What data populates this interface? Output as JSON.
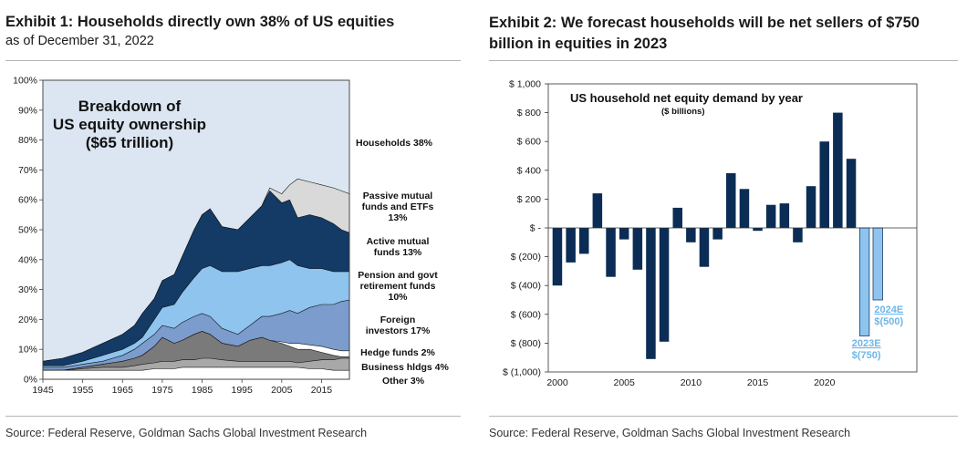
{
  "exhibit1": {
    "title": "Exhibit 1: Households directly own 38% of US equities",
    "subtitle": "as of December 31, 2022",
    "source": "Source: Federal Reserve, Goldman Sachs Global Investment Research",
    "inner_title_lines": [
      "Breakdown of",
      "US equity ownership",
      "($65 trillion)"
    ],
    "chart_data": {
      "type": "area",
      "title": "Breakdown of US equity ownership ($65 trillion)",
      "xlim": [
        1945,
        2022
      ],
      "ylim": [
        0,
        100
      ],
      "x_ticks": [
        1945,
        1955,
        1965,
        1975,
        1985,
        1995,
        2005,
        2015
      ],
      "y_ticks": [
        "0%",
        "10%",
        "20%",
        "30%",
        "40%",
        "50%",
        "60%",
        "70%",
        "80%",
        "90%",
        "100%"
      ],
      "x": [
        1945,
        1950,
        1955,
        1960,
        1965,
        1968,
        1970,
        1973,
        1975,
        1978,
        1980,
        1983,
        1985,
        1987,
        1990,
        1994,
        1997,
        2000,
        2002,
        2005,
        2007,
        2009,
        2012,
        2015,
        2018,
        2020,
        2022
      ],
      "series": [
        {
          "name": "Other 3%",
          "color": "#ffffff",
          "cumulative_top": [
            3,
            3,
            3,
            3,
            3,
            3,
            3,
            3.5,
            3.5,
            3.5,
            4,
            4,
            4,
            4,
            4,
            4,
            4,
            4,
            4,
            4,
            4,
            4,
            3.5,
            3.5,
            3,
            3,
            3
          ]
        },
        {
          "name": "Business hldgs 4%",
          "color": "#a8a8a8",
          "cumulative_top": [
            3,
            3,
            3.5,
            4,
            4,
            4.5,
            5,
            5.5,
            6,
            6,
            6.5,
            6.5,
            7,
            7,
            6.5,
            6,
            6,
            6,
            6,
            6,
            6,
            5.5,
            6,
            6.5,
            6.5,
            7,
            7
          ]
        },
        {
          "name": "Hedge funds 2%",
          "color": "#7a7a7a",
          "cumulative_top": [
            3,
            3,
            4,
            5,
            6,
            7,
            8,
            11,
            14,
            12,
            13,
            15,
            16,
            15,
            12,
            11,
            13,
            14,
            13,
            12,
            11,
            10,
            10,
            9,
            8,
            7.5,
            7.5
          ]
        },
        {
          "name": "Foreign investors 17%",
          "color": "#ffffff",
          "cumulative_top": [
            3,
            3,
            4,
            5,
            6,
            7,
            8,
            11,
            14,
            12,
            13,
            15,
            16,
            15,
            12,
            11,
            13,
            14,
            13,
            12.5,
            12,
            12,
            11.5,
            11,
            10,
            9.5,
            9.5
          ]
        },
        {
          "name": "Pension and govt retirement funds 10%",
          "color": "#7b9ccc",
          "cumulative_top": [
            4,
            4,
            5,
            6,
            8,
            10,
            12,
            15,
            18,
            17,
            19,
            21,
            22,
            21,
            17,
            15,
            18,
            21,
            21,
            22,
            23,
            22,
            24,
            25,
            25,
            26,
            26.5
          ]
        },
        {
          "name": "Active mutual funds 13%",
          "color": "#8ec4ee",
          "cumulative_top": [
            4.5,
            4.5,
            6,
            8,
            10,
            12,
            14,
            20,
            24,
            25,
            29,
            34,
            37,
            38,
            36,
            36,
            37,
            38,
            38,
            39,
            40,
            38,
            37,
            37,
            36,
            36,
            36
          ]
        },
        {
          "name": "Passive mutual funds and ETFs 13%",
          "color": "#143a66",
          "cumulative_top": [
            6,
            7,
            9,
            12,
            15,
            18,
            22,
            27,
            33,
            35,
            41,
            50,
            55,
            57,
            51,
            50,
            54,
            58,
            63,
            59,
            60,
            54,
            55,
            54,
            52,
            50,
            49
          ]
        },
        {
          "name": "Households 38%",
          "color": "#d9d9d9",
          "cumulative_top": [
            6,
            7,
            9,
            12,
            15,
            18,
            22,
            27,
            33,
            35,
            41,
            50,
            55,
            57,
            51,
            50,
            54,
            58,
            64,
            62,
            65,
            67,
            66,
            65,
            64,
            63,
            62
          ]
        }
      ],
      "series_labels": [
        [
          "Households 38%"
        ],
        [
          "Passive mutual",
          "funds and ETFs",
          "13%"
        ],
        [
          "Active mutual",
          "funds 13%"
        ],
        [
          "Pension and govt",
          "retirement funds",
          "10%"
        ],
        [
          "Foreign",
          "investors 17%"
        ],
        [
          "Hedge funds 2%"
        ],
        [
          "Business hldgs 4%"
        ],
        [
          "Other 3%"
        ]
      ],
      "colors": {
        "background": "#dce6f2"
      }
    }
  },
  "exhibit2": {
    "title": "Exhibit 2: We forecast households will be net sellers of $750 billion in equities in 2023",
    "source": "Source: Federal Reserve, Goldman Sachs Global Investment Research",
    "chart_data": {
      "type": "bar",
      "title": "US household net equity demand by year",
      "subtitle": "($ billions)",
      "ylim": [
        -1000,
        1000
      ],
      "y_ticks": [
        "$ 1,000",
        "$ 800",
        "$ 600",
        "$ 400",
        "$ 200",
        "$ -",
        "$ (200)",
        "$ (400)",
        "$ (600)",
        "$ (800)",
        "$ (1,000)"
      ],
      "x_ticks": [
        "2000",
        "2005",
        "2010",
        "2015",
        "2020"
      ],
      "x_tick_years": [
        2000,
        2005,
        2010,
        2015,
        2020
      ],
      "categories": [
        2000,
        2001,
        2002,
        2003,
        2004,
        2005,
        2006,
        2007,
        2008,
        2009,
        2010,
        2011,
        2012,
        2013,
        2014,
        2015,
        2016,
        2017,
        2018,
        2019,
        2020,
        2021,
        2022,
        2023,
        2024
      ],
      "values": [
        -400,
        -240,
        -180,
        240,
        -340,
        -80,
        -290,
        -910,
        -790,
        140,
        -100,
        -270,
        -80,
        380,
        270,
        -20,
        160,
        170,
        -100,
        290,
        600,
        800,
        480,
        -750,
        -500
      ],
      "estimates": [
        2023,
        2024
      ],
      "annotations": [
        {
          "year": 2023,
          "lines": [
            "2023E",
            "$(750)"
          ]
        },
        {
          "year": 2024,
          "lines": [
            "2024E",
            "$(500)"
          ]
        }
      ],
      "colors": {
        "actual": "#0b2d55",
        "estimate": "#8ec4ee"
      }
    }
  }
}
